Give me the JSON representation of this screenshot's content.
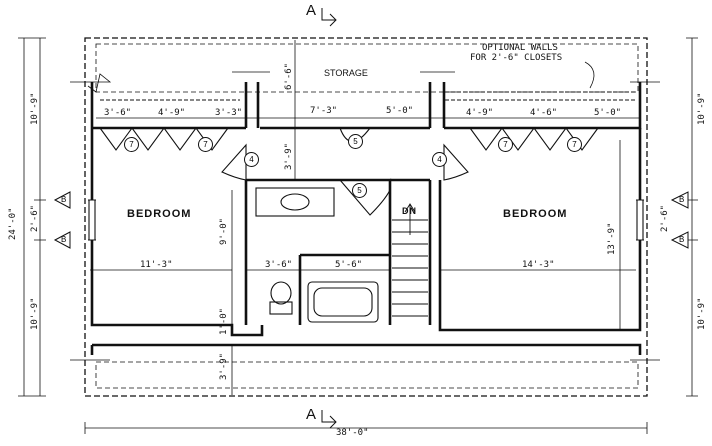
{
  "section_marks": {
    "top": "A",
    "bottom": "A"
  },
  "rooms": {
    "storage": "STORAGE",
    "bedroom_left": "BEDROOM",
    "bedroom_right": "BEDROOM",
    "stair_dn": "DN"
  },
  "notes": {
    "optional_walls_line1": "OPTIONAL WALLS",
    "optional_walls_line2": "FOR 2'-6\" CLOSETS"
  },
  "dims": {
    "overall_width": "38'-0\"",
    "overall_depth": "24'-0\"",
    "left_top": "10'-9\"",
    "left_mid": "2'-6\"",
    "left_bottom": "10'-9\"",
    "right_top": "10'-9\"",
    "right_mid": "2'-6\"",
    "right_bottom": "10'-9\"",
    "closet_l1": "3'-6\"",
    "closet_l2": "4'-9\"",
    "closet_l3": "3'-3\"",
    "hall_1": "7'-3\"",
    "hall_2": "5'-0\"",
    "closet_r1": "4'-9\"",
    "closet_r2": "4'-6\"",
    "closet_r3": "5'-0\"",
    "storage_depth": "6'-6\"",
    "hall_depth": "3'-9\"",
    "bed_left_width": "11'-3\"",
    "bath_1": "3'-6\"",
    "bath_2": "5'-6\"",
    "bed_right_width": "14'-3\"",
    "bath_depth": "9'-0\"",
    "right_room_depth": "13'-9\"",
    "notch": "1'-0\"",
    "bottom_storage": "3'-9\""
  },
  "door_tags": [
    "7",
    "7",
    "4",
    "5",
    "5",
    "4",
    "7",
    "7"
  ],
  "window_tags": [
    "B",
    "B",
    "B",
    "B"
  ]
}
